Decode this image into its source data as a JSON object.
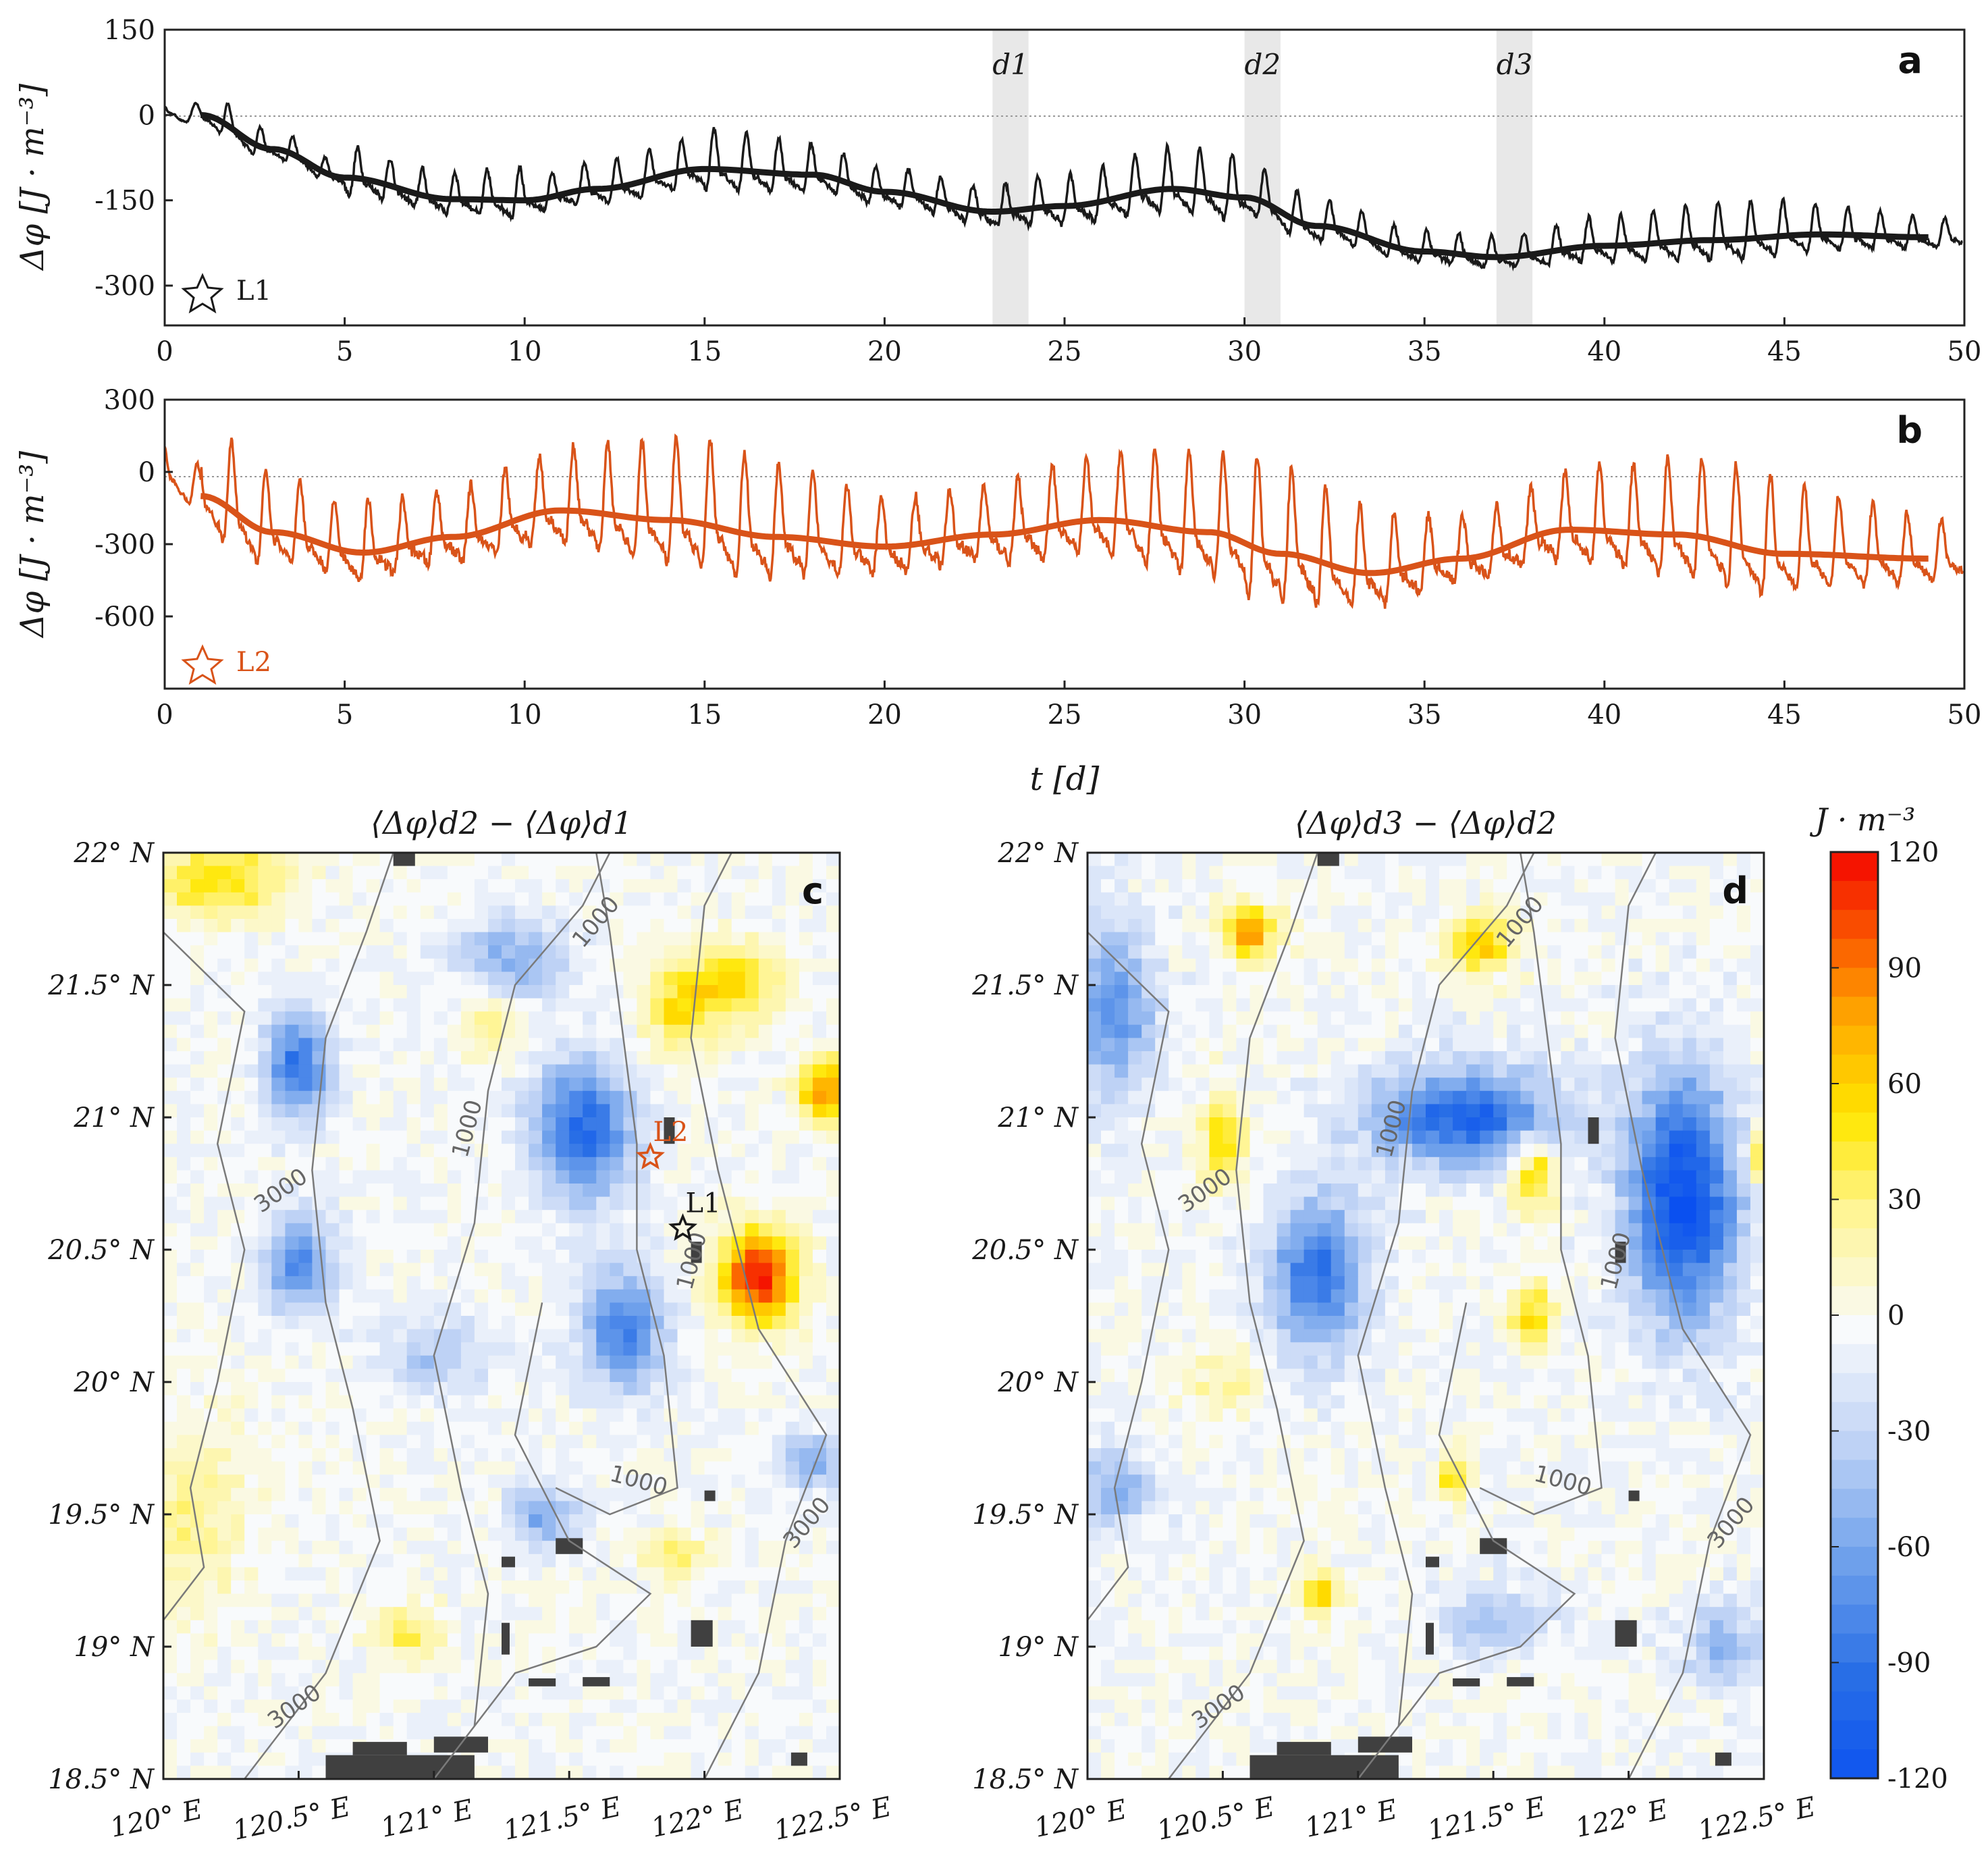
{
  "colors": {
    "series_a": "#1a1a1a",
    "series_b": "#d95319",
    "shade": "#e8e8e8",
    "land": "#404040",
    "contour": "#7a7a7a"
  },
  "chart_data": [
    {
      "id": "a",
      "type": "line",
      "panel_label": "a",
      "ylabel": "Δφ [J · m⁻³]",
      "xlabel": "",
      "xlim": [
        0,
        50
      ],
      "ylim": [
        -370,
        150
      ],
      "xticks": [
        "0",
        "5",
        "10",
        "15",
        "20",
        "25",
        "30",
        "35",
        "40",
        "45",
        "50"
      ],
      "yticks": [
        "150",
        "0",
        "-150",
        "-300"
      ],
      "ytick_values": [
        150,
        0,
        -150,
        -300
      ],
      "legend": "L1",
      "shaded_windows": [
        {
          "label": "d1",
          "x": [
            23,
            24
          ]
        },
        {
          "label": "d2",
          "x": [
            30,
            31
          ]
        },
        {
          "label": "d3",
          "x": [
            37,
            38
          ]
        }
      ],
      "trend": {
        "x": [
          1,
          3,
          5,
          8,
          10,
          12,
          15,
          18,
          20,
          23,
          25,
          28,
          30,
          32,
          35,
          37,
          40,
          43,
          46,
          49
        ],
        "y": [
          0,
          -60,
          -110,
          -148,
          -150,
          -130,
          -95,
          -105,
          -135,
          -170,
          -160,
          -130,
          -145,
          -195,
          -240,
          -250,
          -230,
          -220,
          -210,
          -215
        ]
      },
      "oscillation_amplitude": [
        40,
        90,
        55,
        70,
        85,
        75,
        60,
        70,
        65,
        60
      ],
      "period_days": 0.9
    },
    {
      "id": "b",
      "type": "line",
      "panel_label": "b",
      "ylabel": "Δφ [J · m⁻³]",
      "xlabel": "t [d]",
      "xlim": [
        0,
        50
      ],
      "ylim": [
        -900,
        300
      ],
      "xticks": [
        "0",
        "5",
        "10",
        "15",
        "20",
        "25",
        "30",
        "35",
        "40",
        "45",
        "50"
      ],
      "yticks": [
        "300",
        "0",
        "-300",
        "-600"
      ],
      "ytick_values": [
        300,
        0,
        -300,
        -600
      ],
      "legend": "L2",
      "trend": {
        "x": [
          1,
          3,
          5.5,
          8,
          11,
          14,
          17,
          20,
          23,
          26,
          29,
          31,
          33.5,
          36,
          39,
          42,
          45,
          49
        ],
        "y": [
          -100,
          -250,
          -335,
          -270,
          -160,
          -200,
          -270,
          -310,
          -260,
          -200,
          -250,
          -340,
          -420,
          -360,
          -240,
          -260,
          -340,
          -360
        ]
      },
      "oscillation_amplitude": [
        300,
        380,
        330,
        350,
        380,
        330,
        400,
        360,
        330,
        300
      ],
      "period_days": 0.95
    },
    {
      "id": "c",
      "type": "heatmap",
      "panel_label": "c",
      "title": "⟨Δφ⟩d2 − ⟨Δφ⟩d1",
      "xticks": [
        "120° E",
        "120.5° E",
        "121° E",
        "121.5° E",
        "122° E",
        "122.5° E"
      ],
      "yticks": [
        "22° N",
        "21.5° N",
        "21° N",
        "20.5° N",
        "20° N",
        "19.5° N",
        "19° N",
        "18.5° N"
      ],
      "xlim": [
        120,
        122.5
      ],
      "ylim": [
        18.5,
        22
      ],
      "markers": [
        {
          "label": "L2",
          "lon": 121.8,
          "lat": 20.85
        },
        {
          "label": "L1",
          "lon": 121.92,
          "lat": 20.58
        }
      ],
      "contour_labels": [
        "1000",
        "1000",
        "3000",
        "1000",
        "1000",
        "3000",
        "3000"
      ]
    },
    {
      "id": "d",
      "type": "heatmap",
      "panel_label": "d",
      "title": "⟨Δφ⟩d3 − ⟨Δφ⟩d2",
      "xticks": [
        "120° E",
        "120.5° E",
        "121° E",
        "121.5° E",
        "122° E",
        "122.5° E"
      ],
      "yticks": [
        "22° N",
        "21.5° N",
        "21° N",
        "20.5° N",
        "20° N",
        "19.5° N",
        "19° N",
        "18.5° N"
      ],
      "xlim": [
        120,
        122.5
      ],
      "ylim": [
        18.5,
        22
      ],
      "contour_labels": [
        "1000",
        "1000",
        "3000",
        "1000",
        "1000",
        "3000",
        "3000"
      ]
    }
  ],
  "colorbar": {
    "unit": "J · m⁻³",
    "range": [
      -120,
      120
    ],
    "ticks": [
      "120",
      "90",
      "60",
      "30",
      "0",
      "-30",
      "-60",
      "-90",
      "-120"
    ],
    "tick_values": [
      120,
      90,
      60,
      30,
      0,
      -30,
      -60,
      -90,
      -120
    ]
  }
}
